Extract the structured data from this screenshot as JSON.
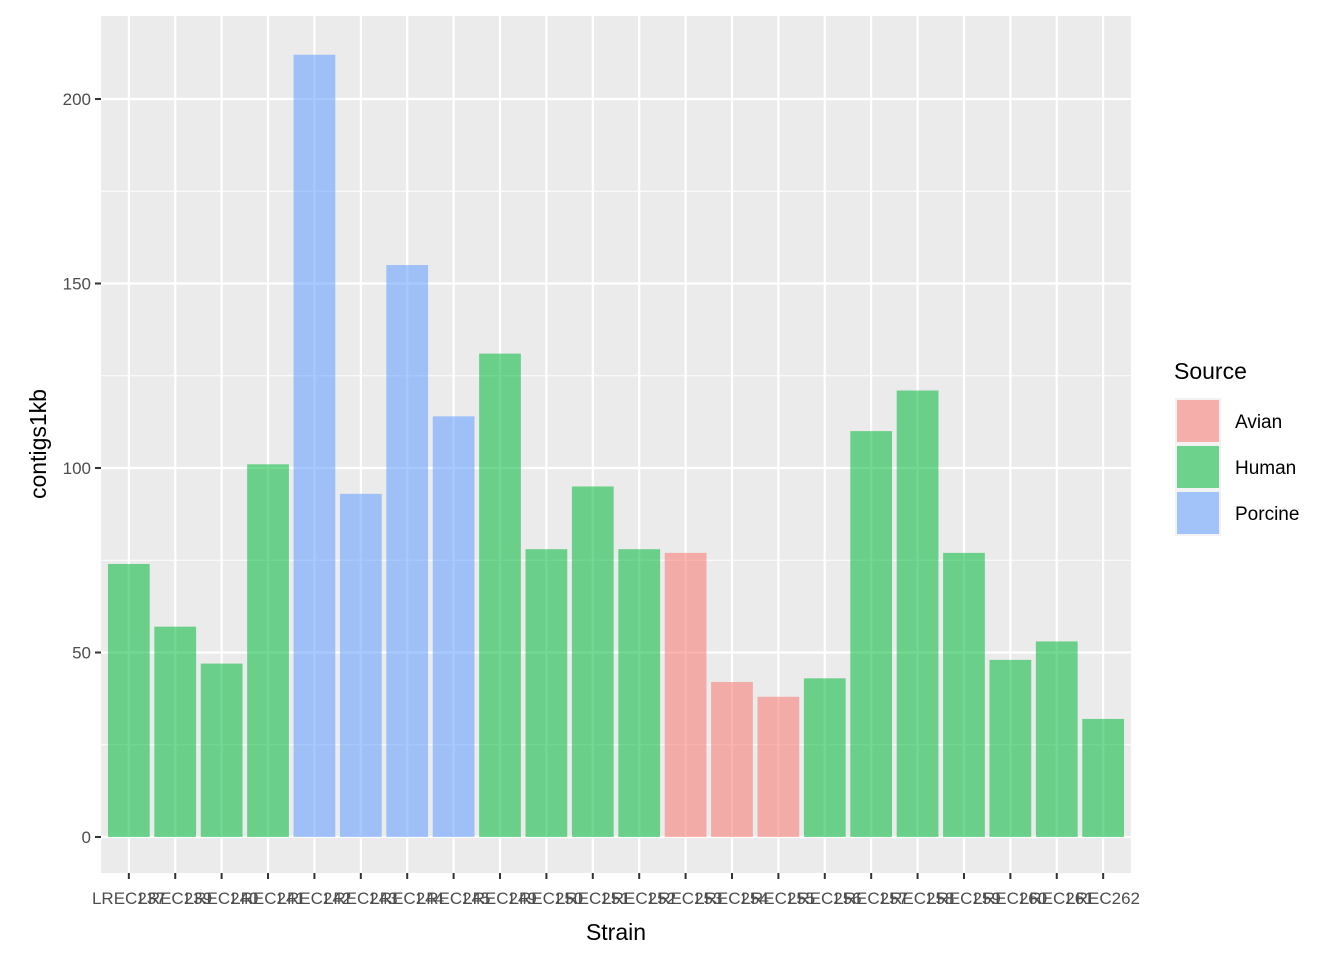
{
  "chart_data": {
    "type": "bar",
    "title": "",
    "xlabel": "Strain",
    "ylabel": "contigs1kb",
    "ylim": [
      -10,
      222
    ],
    "yticks": [
      0,
      50,
      100,
      150,
      200
    ],
    "grid": true,
    "legend": {
      "title": "Source",
      "position": "right"
    },
    "source_colors": {
      "Avian": "#F8766D",
      "Human": "#00BA38",
      "Porcine": "#619CFF"
    },
    "bar_alpha": 0.55,
    "legend_entries": [
      "Avian",
      "Human",
      "Porcine"
    ],
    "categories": [
      "LREC237",
      "LREC239",
      "LREC240",
      "LREC241",
      "LREC242",
      "LREC243",
      "LREC244",
      "LREC245",
      "LREC249",
      "LREC250",
      "LREC251",
      "LREC252",
      "LREC253",
      "LREC254",
      "LREC255",
      "LREC256",
      "LREC257",
      "LREC258",
      "LREC259",
      "LREC260",
      "LREC261",
      "LREC262"
    ],
    "values": [
      74,
      57,
      47,
      101,
      212,
      93,
      155,
      114,
      131,
      78,
      95,
      78,
      77,
      42,
      38,
      43,
      110,
      121,
      77,
      48,
      53,
      32
    ],
    "source": [
      "Human",
      "Human",
      "Human",
      "Human",
      "Porcine",
      "Porcine",
      "Porcine",
      "Porcine",
      "Human",
      "Human",
      "Human",
      "Human",
      "Avian",
      "Avian",
      "Avian",
      "Human",
      "Human",
      "Human",
      "Human",
      "Human",
      "Human",
      "Human"
    ]
  }
}
